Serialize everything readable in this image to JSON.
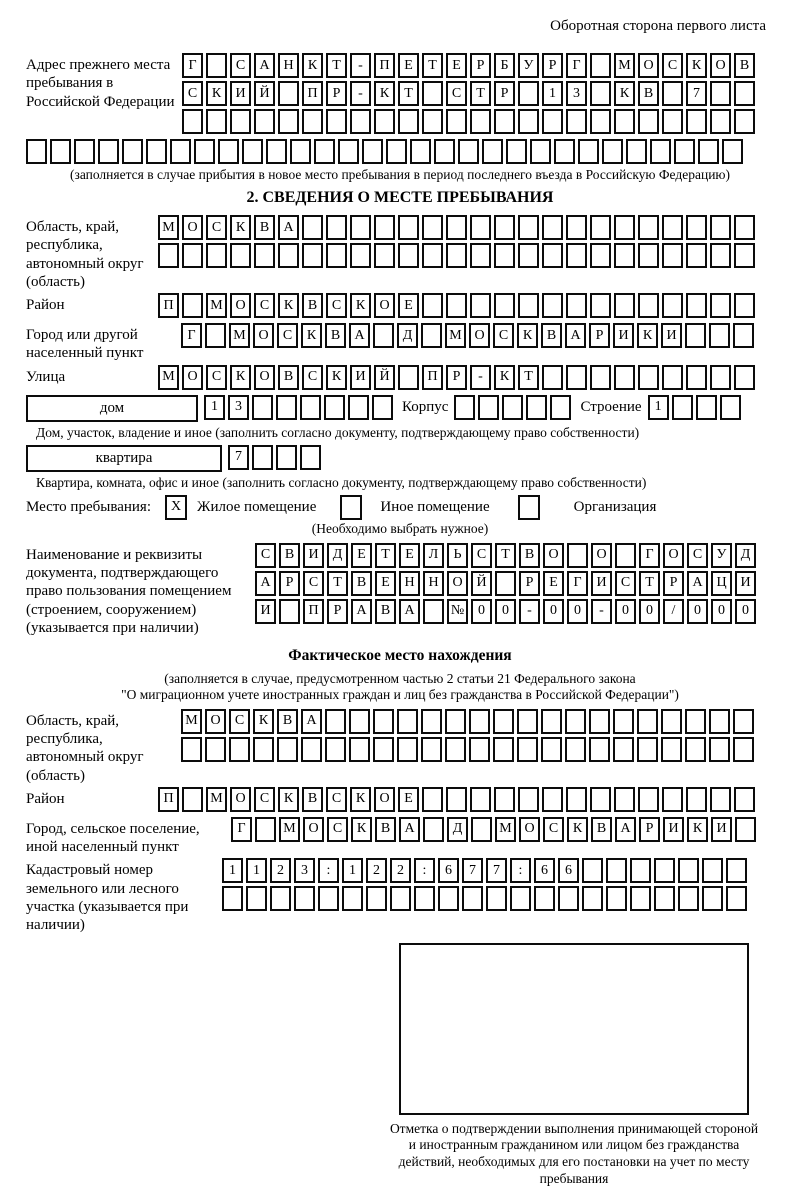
{
  "page": {
    "back_note": "Оборотная сторона первого листа"
  },
  "prev_address": {
    "label": "Адрес прежнего места пребывания в Российской Федерации",
    "rows": [
      {
        "text": "Г САНКТ-ПЕТЕРБУРГ МОСКОВ",
        "len": 24
      },
      {
        "text": "СКИЙ ПР-КТ СТР 13 КВ 7",
        "len": 24
      },
      {
        "text": "",
        "len": 24
      },
      {
        "text": "",
        "len": 30
      }
    ],
    "note": "(заполняется в случае прибытия в новое место пребывания в период последнего въезда в Российскую Федерацию)"
  },
  "section2": {
    "title": "2. СВЕДЕНИЯ О МЕСТЕ ПРЕБЫВАНИЯ",
    "region": {
      "label": "Область, край, республика, автономный округ (область)",
      "rows": [
        {
          "text": "МОСКВА",
          "len": 25
        },
        {
          "text": "",
          "len": 25
        }
      ]
    },
    "district": {
      "label": "Район",
      "row": {
        "text": "П МОСКВСКОЕ",
        "len": 25
      }
    },
    "city": {
      "label": "Город или другой населенный пункт",
      "row": {
        "text": "Г МОСКВА Д МОСКВАРИКИ",
        "len": 24
      }
    },
    "street": {
      "label": "Улица",
      "row": {
        "text": "МОСКОВСКИЙ ПР-КТ",
        "len": 25
      }
    },
    "house": {
      "type_value": "дом",
      "num": {
        "text": "13",
        "len": 8
      },
      "korpus_label": "Корпус",
      "korpus": {
        "text": "",
        "len": 5
      },
      "stroenie_label": "Строение",
      "stroenie": {
        "text": "1",
        "len": 4
      },
      "caption": "Дом, участок, владение и иное (заполнить согласно документу, подтверждающему право собственности)"
    },
    "apartment": {
      "type_value": "квартира",
      "num": {
        "text": "7",
        "len": 4
      },
      "caption": "Квартира, комната, офис и иное (заполнить согласно документу, подтверждающему право собственности)"
    },
    "stay_type": {
      "label": "Место пребывания:",
      "options": [
        {
          "label": "Жилое помещение",
          "checked": "X"
        },
        {
          "label": "Иное помещение",
          "checked": ""
        },
        {
          "label": "Организация",
          "checked": ""
        }
      ],
      "note": "(Необходимо выбрать нужное)"
    },
    "document": {
      "label": "Наименование и реквизиты документа, подтверждающего право пользования помещением (строением, сооружением) (указывается при наличии)",
      "rows": [
        {
          "text": "СВИДЕТЕЛЬСТВО О ГОСУД",
          "len": 21
        },
        {
          "text": "АРСТВЕННОЙ РЕГИСТРАЦИ",
          "len": 21
        },
        {
          "text": "И ПРАВА №00-00-00/000",
          "len": 21
        }
      ]
    }
  },
  "actual_location": {
    "title": "Фактическое место нахождения",
    "note_line1": "(заполняется в случае, предусмотренном частью 2 статьи 21 Федерального закона",
    "note_line2": "\"О миграционном учете иностранных граждан и лиц без гражданства в Российской Федерации\")",
    "region": {
      "label": "Область, край, республика, автономный округ (область)",
      "rows": [
        {
          "text": "МОСКВА",
          "len": 24
        },
        {
          "text": "",
          "len": 24
        }
      ]
    },
    "district": {
      "label": "Район",
      "row": {
        "text": "П МОСКВСКОЕ",
        "len": 25
      }
    },
    "city": {
      "label": "Город, сельское поселение, иной населенный пункт",
      "row": {
        "text": "Г МОСКВА Д МОСКВАРИКИ",
        "len": 22
      }
    },
    "cadastral": {
      "label": "Кадастровый номер земельного или лесного участка (указывается при наличии)",
      "rows": [
        {
          "text": "1123:122:677:66",
          "len": 22
        },
        {
          "text": "",
          "len": 22
        }
      ]
    },
    "stamp_caption": "Отметка о подтверждении выполнения принимающей стороной и иностранным гражданином или лицом без гражданства действий, необходимых для его постановки на учет по месту пребывания"
  }
}
